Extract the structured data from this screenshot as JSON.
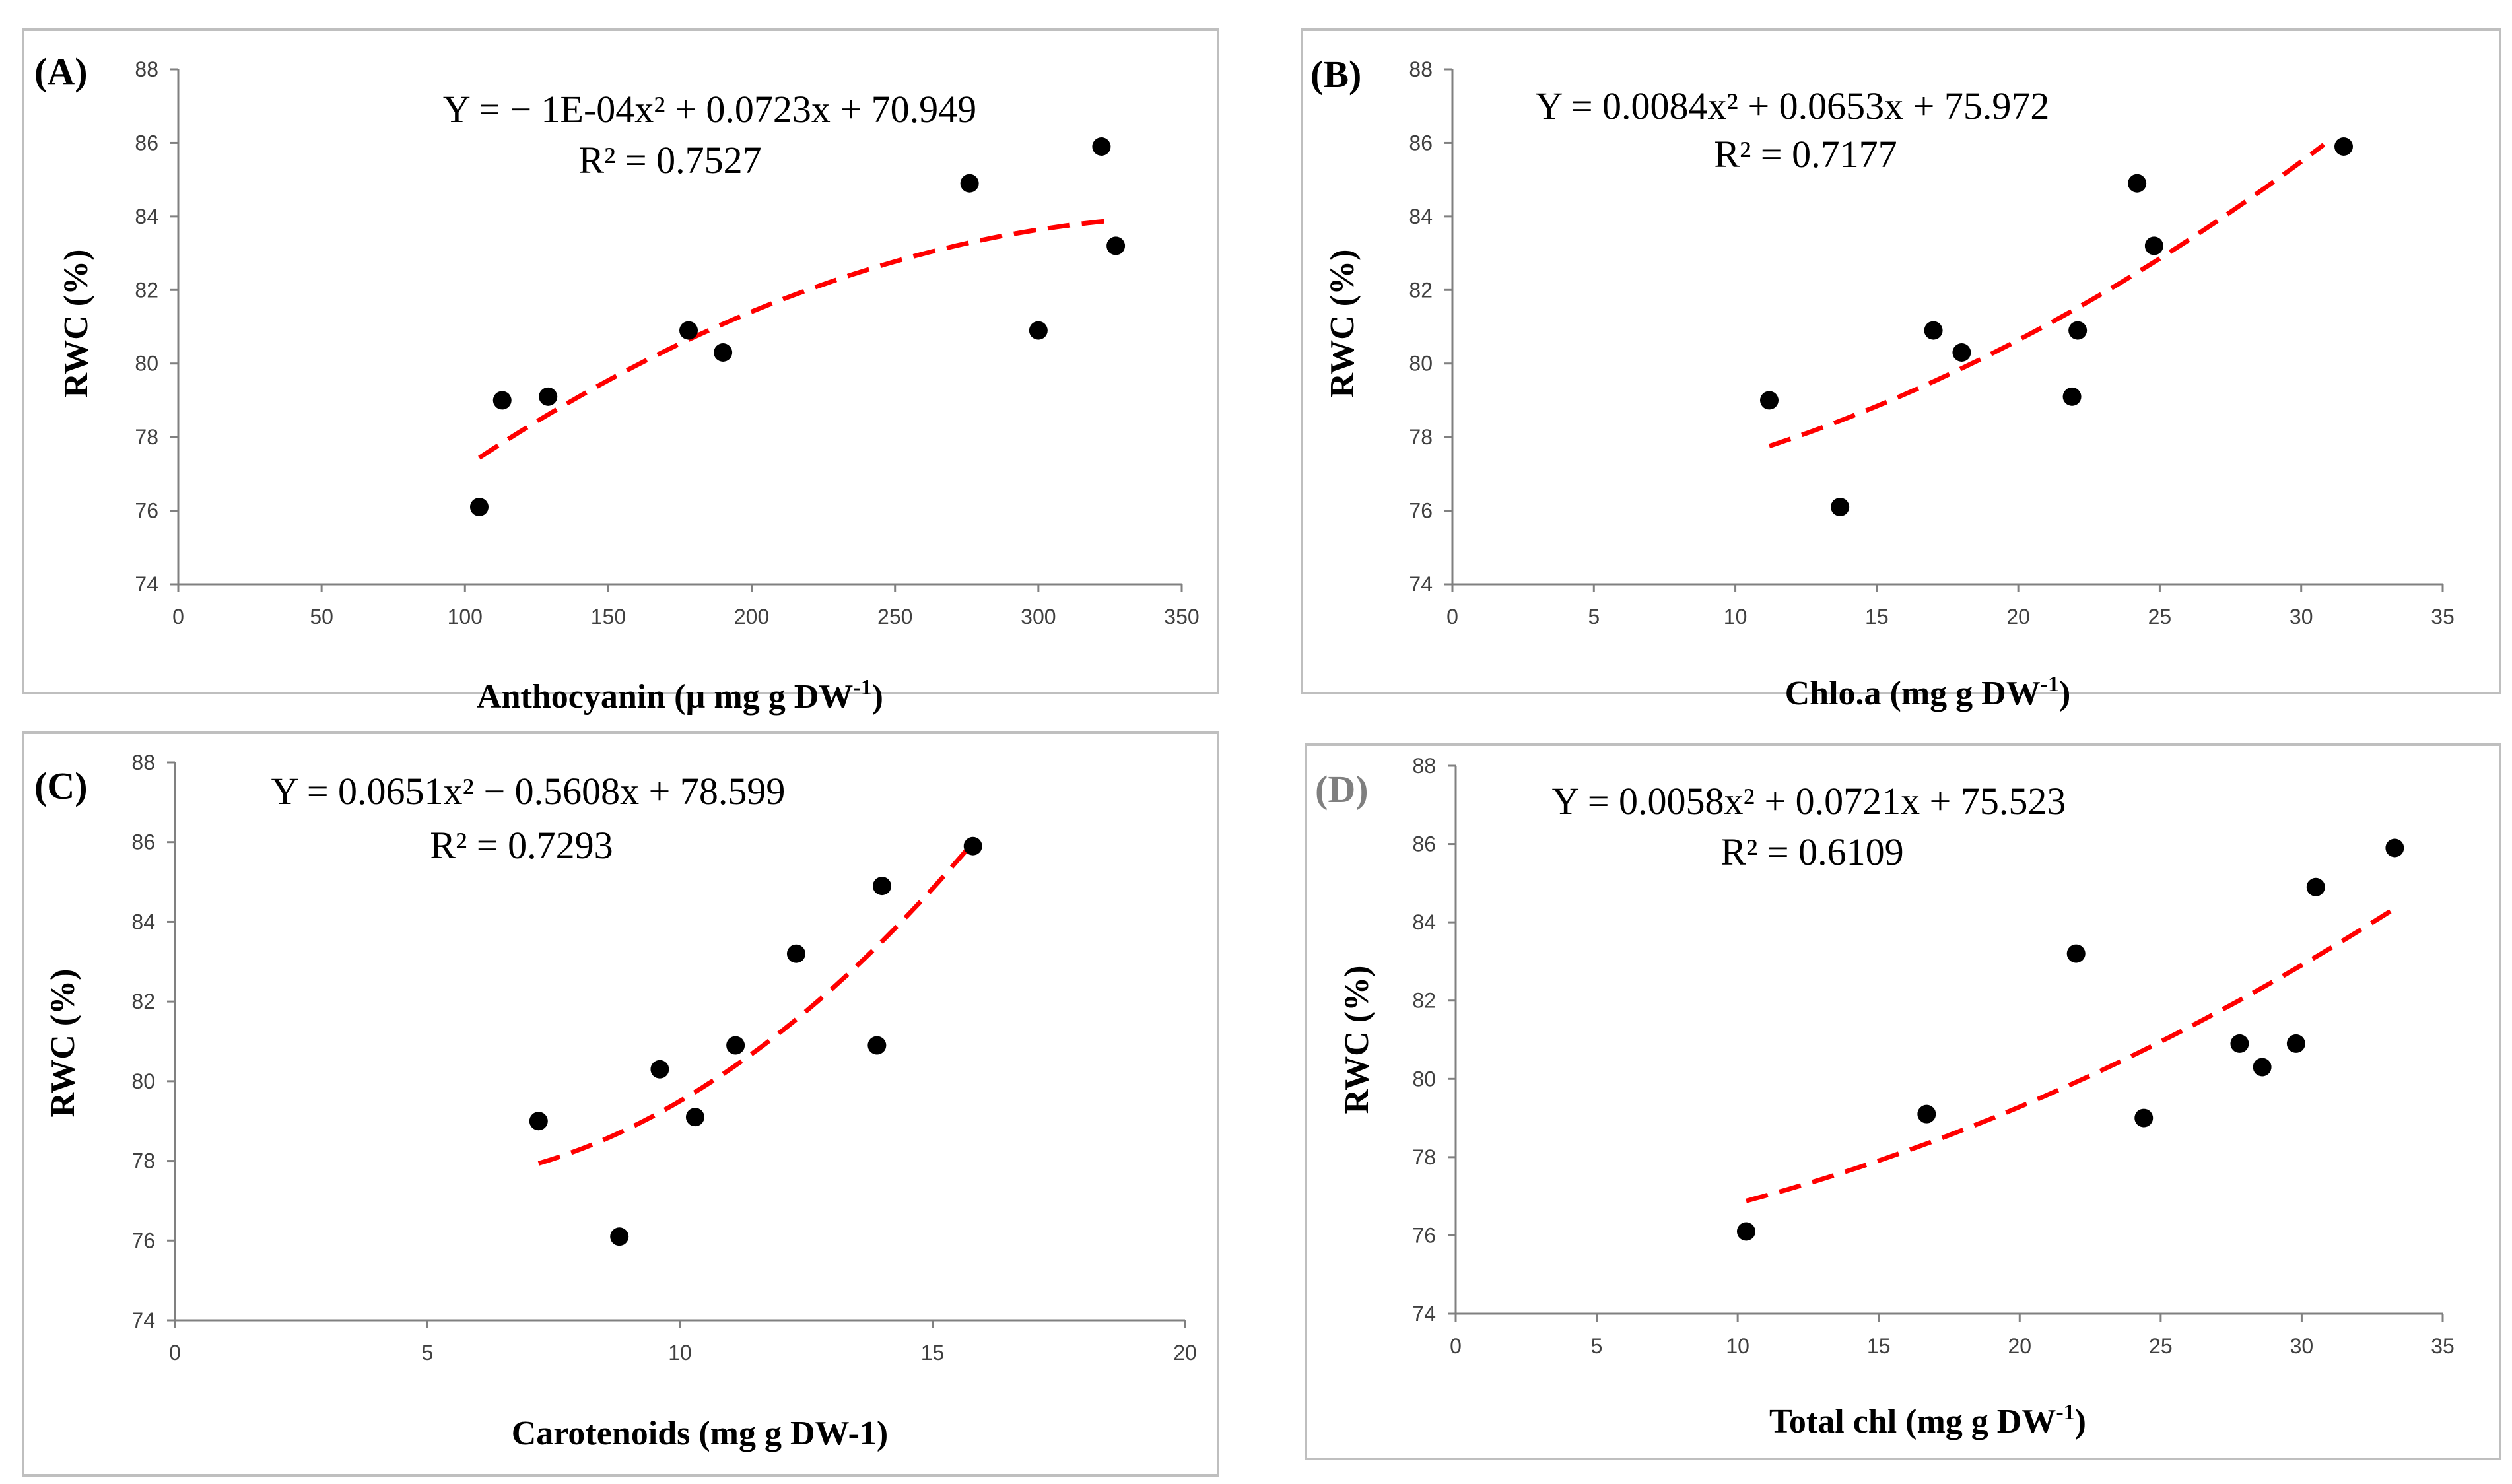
{
  "chart_data": [
    {
      "type": "scatter",
      "panel_label": "(A)",
      "equation": "Y = − 1E-04x² + 0.0723x + 70.949",
      "r_squared": "R² = 0.7527",
      "trend_coeffs": [
        -0.0001,
        0.0723,
        70.949
      ],
      "trend_range": [
        105,
        323
      ],
      "xlabel": {
        "main": "Anthocyanin (µ mg g DW",
        "sup": "-1",
        "close": ")"
      },
      "ylabel": "RWC (%)",
      "xlim": [
        0,
        350
      ],
      "ylim": [
        74,
        88
      ],
      "xticks": [
        "0",
        "50",
        "100",
        "150",
        "200",
        "250",
        "300",
        "350"
      ],
      "yticks": [
        "74",
        "76",
        "78",
        "80",
        "82",
        "84",
        "86",
        "88"
      ],
      "points": [
        [
          105,
          76.1
        ],
        [
          113,
          79.0
        ],
        [
          129,
          79.1
        ],
        [
          178,
          80.9
        ],
        [
          190,
          80.3
        ],
        [
          276,
          84.9
        ],
        [
          300,
          80.9
        ],
        [
          322,
          85.9
        ],
        [
          327,
          83.2
        ]
      ],
      "marker_color": "#000000",
      "trend_color": "#ff0000"
    },
    {
      "type": "scatter",
      "panel_label": "(B)",
      "equation": "Y = 0.0084x² + 0.0653x + 75.972",
      "r_squared": "R² = 0.7177",
      "trend_coeffs": [
        0.0084,
        0.0653,
        75.972
      ],
      "trend_range": [
        11.2,
        30.8
      ],
      "xlabel": {
        "main": "Chlo.a (mg g DW",
        "sup": "-1",
        "close": ")"
      },
      "ylabel": "RWC (%)",
      "xlim": [
        0,
        35
      ],
      "ylim": [
        74,
        88
      ],
      "xticks": [
        "0",
        "5",
        "10",
        "15",
        "20",
        "25",
        "30",
        "35"
      ],
      "yticks": [
        "74",
        "76",
        "78",
        "80",
        "82",
        "84",
        "86",
        "88"
      ],
      "points": [
        [
          11.2,
          79.0
        ],
        [
          13.7,
          76.1
        ],
        [
          17.0,
          80.9
        ],
        [
          18.0,
          80.3
        ],
        [
          21.9,
          79.1
        ],
        [
          22.1,
          80.9
        ],
        [
          24.2,
          84.9
        ],
        [
          24.8,
          83.2
        ],
        [
          31.5,
          85.9
        ]
      ],
      "marker_color": "#000000",
      "trend_color": "#ff0000"
    },
    {
      "type": "scatter",
      "panel_label": "(C)",
      "equation": "Y = 0.0651x² − 0.5608x + 78.599",
      "r_squared": "R² = 0.7293",
      "trend_coeffs": [
        0.0651,
        -0.5608,
        78.599
      ],
      "trend_range": [
        7.2,
        15.8
      ],
      "xlabel": {
        "main": "Carotenoids (mg g DW-1)",
        "sup": "",
        "close": ""
      },
      "ylabel": "RWC (%)",
      "xlim": [
        0,
        20
      ],
      "ylim": [
        74,
        88
      ],
      "xticks": [
        "0",
        "5",
        "10",
        "15",
        "20"
      ],
      "yticks": [
        "74",
        "76",
        "78",
        "80",
        "82",
        "84",
        "86",
        "88"
      ],
      "points": [
        [
          7.2,
          79.0
        ],
        [
          8.8,
          76.1
        ],
        [
          9.6,
          80.3
        ],
        [
          10.3,
          79.1
        ],
        [
          11.1,
          80.9
        ],
        [
          12.3,
          83.2
        ],
        [
          13.9,
          80.9
        ],
        [
          14.0,
          84.9
        ],
        [
          15.8,
          85.9
        ]
      ],
      "marker_color": "#000000",
      "trend_color": "#ff0000"
    },
    {
      "type": "scatter",
      "panel_label": "(D)",
      "equation": "Y = 0.0058x² + 0.0721x + 75.523",
      "r_squared": "R² = 0.6109",
      "trend_coeffs": [
        0.0058,
        0.0721,
        75.523
      ],
      "trend_range": [
        10.3,
        33.3
      ],
      "xlabel": {
        "main": "Total chl (mg g DW",
        "sup": "-1",
        "close": ")"
      },
      "ylabel": "RWC (%)",
      "xlim": [
        0,
        35
      ],
      "ylim": [
        74,
        88
      ],
      "xticks": [
        "0",
        "5",
        "10",
        "15",
        "20",
        "25",
        "30",
        "35"
      ],
      "yticks": [
        "74",
        "76",
        "78",
        "80",
        "82",
        "84",
        "86",
        "88"
      ],
      "points": [
        [
          10.3,
          76.1
        ],
        [
          16.7,
          79.1
        ],
        [
          22.0,
          83.2
        ],
        [
          24.4,
          79.0
        ],
        [
          27.8,
          80.9
        ],
        [
          28.6,
          80.3
        ],
        [
          29.8,
          80.9
        ],
        [
          30.5,
          84.9
        ],
        [
          33.3,
          85.9
        ]
      ],
      "marker_color": "#000000",
      "trend_color": "#ff0000"
    }
  ]
}
